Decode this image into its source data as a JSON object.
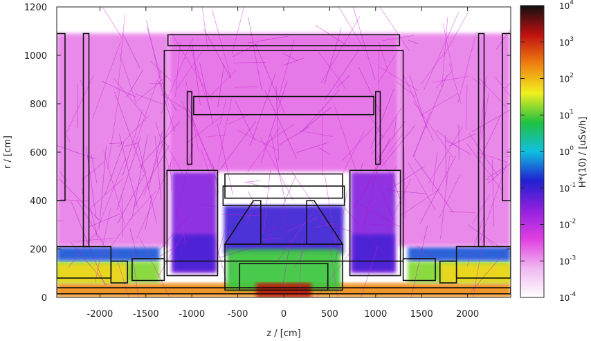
{
  "chart_data": {
    "type": "heatmap",
    "title": "",
    "xlabel": "z / [cm]",
    "ylabel": "r / [cm]",
    "xlim": [
      -2470,
      2470
    ],
    "ylim": [
      0,
      1200
    ],
    "x_ticks": [
      -2000,
      -1500,
      -1000,
      -500,
      0,
      500,
      1000,
      1500,
      2000
    ],
    "y_ticks": [
      0,
      200,
      400,
      600,
      800,
      1000,
      1200
    ],
    "colorbar": {
      "label": "H*(10) / [uSv/h]",
      "scale": "log",
      "range": [
        0.0001,
        10000
      ],
      "ticks": [
        {
          "value": 0.0001,
          "base": "10",
          "exp": "-4"
        },
        {
          "value": 0.001,
          "base": "10",
          "exp": "-3"
        },
        {
          "value": 0.01,
          "base": "10",
          "exp": "-2"
        },
        {
          "value": 0.1,
          "base": "10",
          "exp": "-1"
        },
        {
          "value": 1,
          "base": "10",
          "exp": "0"
        },
        {
          "value": 10,
          "base": "10",
          "exp": "1"
        },
        {
          "value": 100,
          "base": "10",
          "exp": "2"
        },
        {
          "value": 1000,
          "base": "10",
          "exp": "3"
        },
        {
          "value": 10000,
          "base": "10",
          "exp": "4"
        }
      ],
      "colors": [
        "#ffffff",
        "#f0b8f0",
        "#e040e0",
        "#9020e0",
        "#2020d0",
        "#10c0e0",
        "#20c040",
        "#f0f020",
        "#f08010",
        "#c01010",
        "#101010"
      ]
    },
    "grid": false,
    "legend": "none",
    "dose_regions": [
      {
        "name": "floor-band",
        "z": [
          -2470,
          2470
        ],
        "r": [
          0,
          60
        ],
        "dose": 200
      },
      {
        "name": "left-shield-lower",
        "z": [
          -2470,
          -1350
        ],
        "r": [
          60,
          150
        ],
        "dose": 15
      },
      {
        "name": "right-shield-lower",
        "z": [
          1350,
          2470
        ],
        "r": [
          60,
          150
        ],
        "dose": 15
      },
      {
        "name": "left-outer-plug",
        "z": [
          -2470,
          -1700
        ],
        "r": [
          60,
          140
        ],
        "dose": 60
      },
      {
        "name": "right-outer-plug",
        "z": [
          1700,
          2470
        ],
        "r": [
          60,
          140
        ],
        "dose": 60
      },
      {
        "name": "left-shield-upper",
        "z": [
          -2470,
          -1350
        ],
        "r": [
          150,
          210
        ],
        "dose": 0.3
      },
      {
        "name": "right-shield-upper",
        "z": [
          1350,
          2470
        ],
        "r": [
          150,
          210
        ],
        "dose": 0.3
      },
      {
        "name": "left-toroid",
        "z": [
          -1220,
          -730
        ],
        "r": [
          100,
          520
        ],
        "dose": 0.03
      },
      {
        "name": "right-toroid",
        "z": [
          730,
          1220
        ],
        "r": [
          100,
          520
        ],
        "dose": 0.03
      },
      {
        "name": "left-toroid-core",
        "z": [
          -1200,
          -750
        ],
        "r": [
          110,
          260
        ],
        "dose": 0.08
      },
      {
        "name": "right-toroid-core",
        "z": [
          750,
          1200
        ],
        "r": [
          110,
          260
        ],
        "dose": 0.08
      },
      {
        "name": "central-cone",
        "z": [
          -650,
          650
        ],
        "r": [
          180,
          380
        ],
        "dose": 0.1
      },
      {
        "name": "central-body",
        "z": [
          -620,
          620
        ],
        "r": [
          30,
          200
        ],
        "dose": 8
      },
      {
        "name": "beamline-core",
        "z": [
          -300,
          300
        ],
        "r": [
          0,
          60
        ],
        "dose": 1500
      },
      {
        "name": "upper-hall-left",
        "z": [
          -2470,
          -1250
        ],
        "r": [
          210,
          1090
        ],
        "dose": 0.0015
      },
      {
        "name": "upper-hall-right",
        "z": [
          1250,
          2470
        ],
        "r": [
          210,
          1090
        ],
        "dose": 0.0015
      },
      {
        "name": "upper-hall-centre",
        "z": [
          -1250,
          1250
        ],
        "r": [
          520,
          1090
        ],
        "dose": 0.002
      }
    ]
  }
}
